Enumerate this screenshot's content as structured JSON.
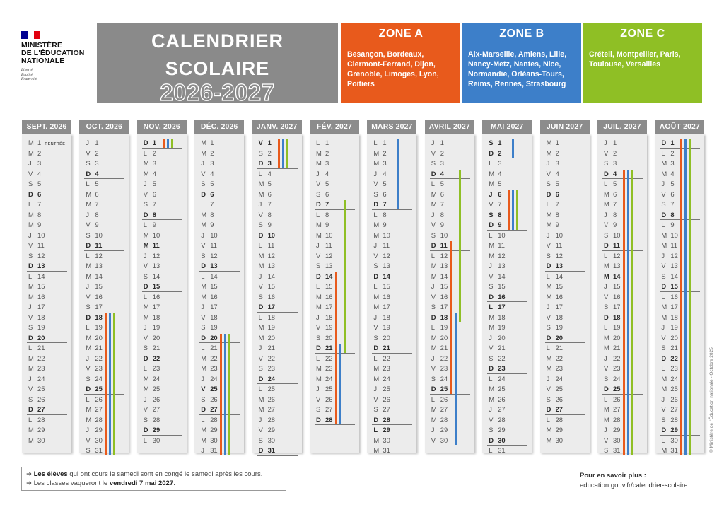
{
  "logo": {
    "ministry_lines": [
      "MINISTÈRE",
      "DE L'ÉDUCATION",
      "NATIONALE"
    ],
    "motto_lines": [
      "Liberté",
      "Égalité",
      "Fraternité"
    ],
    "flag_colors": [
      "#000091",
      "#ffffff",
      "#e1000f"
    ]
  },
  "title": {
    "line1": "CALENDRIER",
    "line2": "SCOLAIRE",
    "year": "2026-2027"
  },
  "zones": [
    {
      "name": "ZONE A",
      "color": "#e85a1c",
      "cities": "Besançon, Bordeaux, Clermont-Ferrand, Dijon, Grenoble, Limoges, Lyon, Poitiers"
    },
    {
      "name": "ZONE B",
      "color": "#3d7fc9",
      "cities": "Aix-Marseille, Amiens, Lille, Nancy-Metz, Nantes, Nice, Normandie, Orléans-Tours, Reims, Rennes, Strasbourg"
    },
    {
      "name": "ZONE C",
      "color": "#8fbf25",
      "cities": "Créteil, Montpellier, Paris, Toulouse, Versailles"
    }
  ],
  "months": [
    {
      "name": "SEPT. 2026",
      "start_wd": 1,
      "days": 30,
      "bold": [
        6,
        13,
        20,
        27
      ],
      "notes": {
        "1": "RENTRÉE"
      },
      "bars": []
    },
    {
      "name": "OCT. 2026",
      "start_wd": 3,
      "days": 31,
      "bold": [
        4,
        11,
        18,
        25
      ],
      "notes": {},
      "bars": [
        {
          "zone": 0,
          "from": 18,
          "to": 31
        },
        {
          "zone": 1,
          "from": 18,
          "to": 31
        },
        {
          "zone": 2,
          "from": 18,
          "to": 31
        }
      ]
    },
    {
      "name": "NOV. 2026",
      "start_wd": 6,
      "days": 30,
      "bold": [
        1,
        8,
        11,
        15,
        22,
        29
      ],
      "notes": {},
      "bars": [
        {
          "zone": 0,
          "from": 1,
          "to": 1
        },
        {
          "zone": 1,
          "from": 1,
          "to": 1
        },
        {
          "zone": 2,
          "from": 1,
          "to": 1
        }
      ]
    },
    {
      "name": "DÉC. 2026",
      "start_wd": 1,
      "days": 31,
      "bold": [
        6,
        13,
        20,
        25,
        27
      ],
      "notes": {},
      "bars": [
        {
          "zone": 0,
          "from": 20,
          "to": 31
        },
        {
          "zone": 1,
          "from": 20,
          "to": 31
        },
        {
          "zone": 2,
          "from": 20,
          "to": 31
        }
      ]
    },
    {
      "name": "JANV. 2027",
      "start_wd": 4,
      "days": 31,
      "bold": [
        1,
        3,
        10,
        17,
        24,
        31
      ],
      "notes": {},
      "bars": [
        {
          "zone": 0,
          "from": 1,
          "to": 3
        },
        {
          "zone": 1,
          "from": 1,
          "to": 3
        },
        {
          "zone": 2,
          "from": 1,
          "to": 3
        }
      ]
    },
    {
      "name": "FÉV. 2027",
      "start_wd": 0,
      "days": 28,
      "bold": [
        7,
        14,
        21,
        28
      ],
      "notes": {},
      "bars": [
        {
          "zone": 0,
          "from": 14,
          "to": 28
        },
        {
          "zone": 1,
          "from": 21,
          "to": 28
        },
        {
          "zone": 2,
          "from": 7,
          "to": 21
        }
      ]
    },
    {
      "name": "MARS 2027",
      "start_wd": 0,
      "days": 31,
      "bold": [
        7,
        14,
        21,
        28,
        29
      ],
      "notes": {},
      "bars": [
        {
          "zone": 1,
          "from": 1,
          "to": 7
        }
      ]
    },
    {
      "name": "AVRIL 2027",
      "start_wd": 3,
      "days": 30,
      "bold": [
        4,
        11,
        18,
        25
      ],
      "notes": {},
      "bars": [
        {
          "zone": 0,
          "from": 11,
          "to": 25
        },
        {
          "zone": 1,
          "from": 18,
          "to": 30
        },
        {
          "zone": 2,
          "from": 4,
          "to": 18
        }
      ]
    },
    {
      "name": "MAI 2027",
      "start_wd": 5,
      "days": 31,
      "bold": [
        1,
        2,
        6,
        8,
        9,
        16,
        17,
        23,
        30
      ],
      "notes": {},
      "bars": [
        {
          "zone": 0,
          "from": 6,
          "to": 9
        },
        {
          "zone": 1,
          "from": 1,
          "to": 2
        },
        {
          "zone": 1,
          "from": 6,
          "to": 9
        },
        {
          "zone": 2,
          "from": 6,
          "to": 9
        }
      ]
    },
    {
      "name": "JUIN 2027",
      "start_wd": 1,
      "days": 30,
      "bold": [
        6,
        13,
        20,
        27
      ],
      "notes": {},
      "bars": []
    },
    {
      "name": "JUIL. 2027",
      "start_wd": 3,
      "days": 31,
      "bold": [
        4,
        11,
        14,
        18,
        25
      ],
      "notes": {},
      "bars": [
        {
          "zone": 0,
          "from": 4,
          "to": 31
        },
        {
          "zone": 1,
          "from": 4,
          "to": 31
        },
        {
          "zone": 2,
          "from": 4,
          "to": 31
        }
      ]
    },
    {
      "name": "AOÛT 2027",
      "start_wd": 6,
      "days": 31,
      "bold": [
        1,
        8,
        15,
        22,
        29
      ],
      "notes": {},
      "bars": [
        {
          "zone": 0,
          "from": 1,
          "to": 31
        },
        {
          "zone": 1,
          "from": 1,
          "to": 31
        },
        {
          "zone": 2,
          "from": 1,
          "to": 31
        }
      ]
    }
  ],
  "weekday_letters": [
    "L",
    "M",
    "M",
    "J",
    "V",
    "S",
    "D"
  ],
  "footer": {
    "note1_bold": "Les élèves",
    "note1_rest": " qui ont cours le samedi sont en congé le samedi après les cours.",
    "note2_start": "Les classes vaqueront le ",
    "note2_bold": "vendredi 7 mai 2027",
    "note2_end": ".",
    "more_label": "Pour en savoir plus :",
    "more_url": "education.gouv.fr/calendrier-scolaire",
    "copyright": "© Ministère de l'Éducation nationale - Octobre 2025"
  }
}
